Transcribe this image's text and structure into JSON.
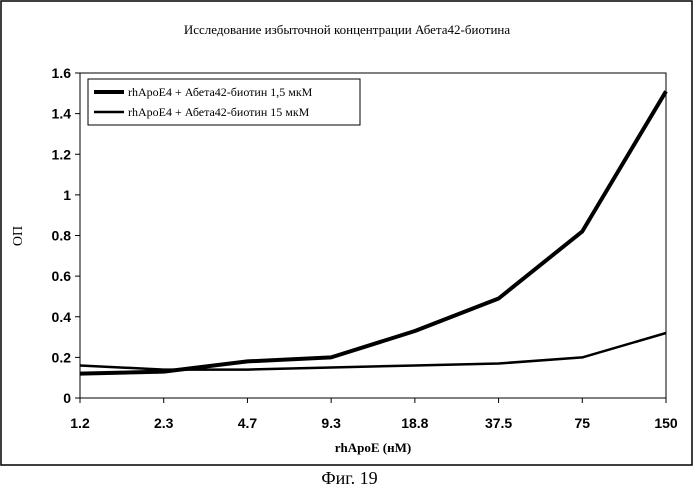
{
  "chart_data": {
    "type": "line",
    "title": "Исследование избыточной концентрации Абета42-биотина",
    "xlabel": "rhApoE (нМ)",
    "ylabel": "ОП",
    "categories": [
      "1.2",
      "2.3",
      "4.7",
      "9.3",
      "18.8",
      "37.5",
      "75",
      "150"
    ],
    "ylim": [
      0,
      1.6
    ],
    "yticks": [
      "0",
      "0.2",
      "0.4",
      "0.6",
      "0.8",
      "1",
      "1.2",
      "1.4",
      "1.6"
    ],
    "grid": false,
    "legend_position": "top-left",
    "series": [
      {
        "name": "rhApoE4 + Абета42-биотин 1,5 мкМ",
        "values": [
          0.12,
          0.13,
          0.18,
          0.2,
          0.33,
          0.49,
          0.82,
          1.51
        ]
      },
      {
        "name": "rhApoE4 + Абета42-биотин 15 мкМ",
        "values": [
          0.16,
          0.14,
          0.14,
          0.15,
          0.16,
          0.17,
          0.2,
          0.32
        ]
      }
    ]
  },
  "caption": "Фиг. 19"
}
